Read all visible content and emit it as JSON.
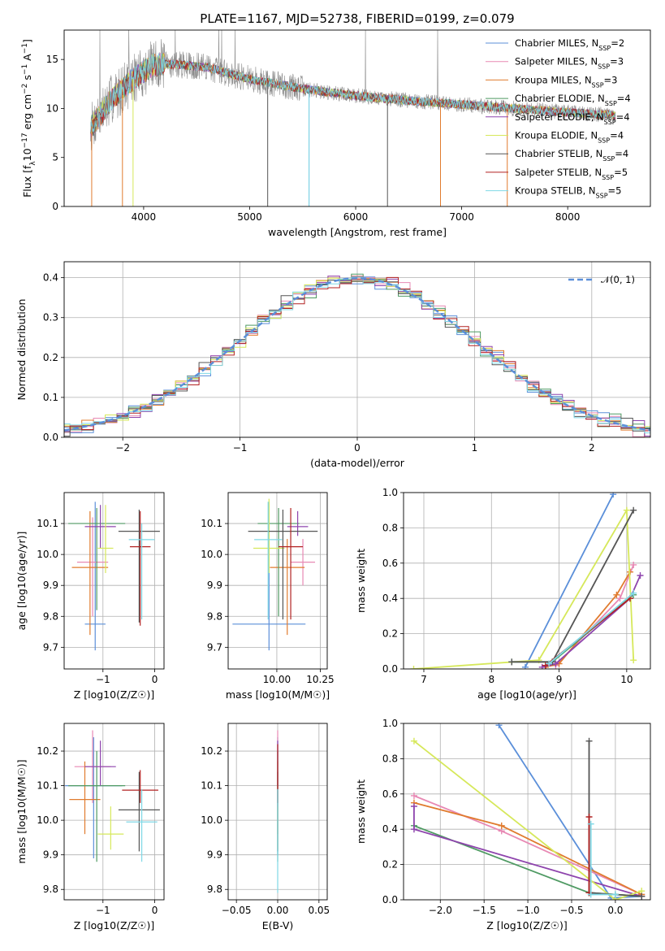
{
  "colors": {
    "Chabrier MILES": "#5b8fd9",
    "Salpeter MILES": "#e889b4",
    "Kroupa MILES": "#e07b2e",
    "Chabrier ELODIE": "#4f9a63",
    "Salpeter ELODIE": "#8e44ad",
    "Kroupa ELODIE": "#d6e85a",
    "Chabrier STELIB": "#555555",
    "Salpeter STELIB": "#b22222",
    "Kroupa STELIB": "#7fd8e6",
    "data": "#8c8c8c",
    "grid": "#b0b0b0"
  },
  "chart_data": [
    {
      "id": "spectrum",
      "type": "line",
      "title": "PLATE=1167, MJD=52738, FIBERID=0199, z=0.079",
      "xlabel": "wavelength [Angstrom, rest frame]",
      "ylabel": "Flux [f_λ 10^-17 erg cm^-2 s^-1 A^-1]",
      "xlim": [
        3250,
        8780
      ],
      "ylim": [
        0,
        18
      ],
      "xticks": [
        4000,
        5000,
        6000,
        7000,
        8000
      ],
      "yticks": [
        0,
        5,
        10,
        15
      ],
      "grid": false,
      "legend_position": "upper-right",
      "legend": [
        {
          "model": "Chabrier MILES",
          "text": "Chabrier MILES, N",
          "n": "=2"
        },
        {
          "model": "Salpeter MILES",
          "text": "Salpeter MILES, N",
          "n": "=3"
        },
        {
          "model": "Kroupa MILES",
          "text": "Kroupa MILES, N",
          "n": "=3"
        },
        {
          "model": "Chabrier ELODIE",
          "text": "Chabrier ELODIE, N",
          "n": "=4"
        },
        {
          "model": "Salpeter ELODIE",
          "text": "Salpeter ELODIE, N",
          "n": "=4"
        },
        {
          "model": "Kroupa ELODIE",
          "text": "Kroupa ELODIE, N",
          "n": "=4"
        },
        {
          "model": "Chabrier STELIB",
          "text": "Chabrier STELIB, N",
          "n": "=4"
        },
        {
          "model": "Salpeter STELIB",
          "text": "Salpeter STELIB, N",
          "n": "=5"
        },
        {
          "model": "Kroupa STELIB",
          "text": "Kroupa STELIB, N",
          "n": "=5"
        }
      ],
      "legend_subscript": "SSP",
      "spectrum_anchor_points": [
        [
          3500,
          8.0
        ],
        [
          3700,
          11.0
        ],
        [
          3900,
          13.0
        ],
        [
          4100,
          14.5
        ],
        [
          4300,
          14.5
        ],
        [
          4600,
          14.2
        ],
        [
          5000,
          13.0
        ],
        [
          5500,
          12.0
        ],
        [
          6000,
          11.3
        ],
        [
          6500,
          10.8
        ],
        [
          7000,
          10.4
        ],
        [
          7500,
          10.0
        ],
        [
          8000,
          9.6
        ],
        [
          8450,
          9.3
        ]
      ],
      "spectrum_range": [
        3500,
        8450
      ],
      "dropouts": [
        {
          "model": "Kroupa MILES",
          "x": 3510
        },
        {
          "model": "Kroupa MILES",
          "x": 3800
        },
        {
          "model": "Kroupa ELODIE",
          "x": 3900
        },
        {
          "model": "Chabrier STELIB",
          "x": 5170
        },
        {
          "model": "Chabrier MILES",
          "x": 5560
        },
        {
          "model": "Kroupa STELIB",
          "x": 5560
        },
        {
          "model": "Chabrier STELIB",
          "x": 6300
        },
        {
          "model": "Kroupa MILES",
          "x": 6800
        },
        {
          "model": "Kroupa MILES",
          "x": 7430
        }
      ]
    },
    {
      "id": "residuals",
      "type": "line",
      "xlabel": "(data-model)/error",
      "ylabel": "Normed distribution",
      "xlim": [
        -2.5,
        2.5
      ],
      "ylim": [
        0,
        0.44
      ],
      "xticks": [
        -2,
        -1,
        0,
        1,
        2
      ],
      "yticks": [
        0.0,
        0.1,
        0.2,
        0.3,
        0.4
      ],
      "grid": true,
      "legend_position": "upper-right",
      "reference_curve": {
        "label": "𝒩(0, 1)",
        "style": "dashed",
        "color": "#5b8fd9",
        "mean": 0,
        "sigma": 1
      },
      "histogram_bin_width": 0.1,
      "series": [
        {
          "model": "Chabrier MILES"
        },
        {
          "model": "Salpeter MILES"
        },
        {
          "model": "Kroupa MILES"
        },
        {
          "model": "Chabrier ELODIE"
        },
        {
          "model": "Salpeter ELODIE"
        },
        {
          "model": "Kroupa ELODIE"
        },
        {
          "model": "Chabrier STELIB"
        },
        {
          "model": "Salpeter STELIB"
        },
        {
          "model": "Kroupa STELIB"
        }
      ]
    },
    {
      "id": "age-vs-z",
      "type": "scatter",
      "xlabel": "Z [log10(Z/Z☉)]",
      "ylabel": "age [log10(age/yr)]",
      "xlim": [
        -1.75,
        0.18
      ],
      "ylim": [
        9.63,
        10.2
      ],
      "xticks": [
        -1,
        0
      ],
      "yticks": [
        9.7,
        9.8,
        9.9,
        10.0,
        10.1
      ],
      "grid": true,
      "points": [
        {
          "model": "Chabrier MILES",
          "x": -1.15,
          "y": 9.775,
          "xerr": 0.2,
          "yerr": [
            9.69,
            10.17
          ]
        },
        {
          "model": "Salpeter MILES",
          "x": -1.2,
          "y": 9.975,
          "xerr": 0.3,
          "yerr": [
            9.8,
            10.12
          ]
        },
        {
          "model": "Kroupa MILES",
          "x": -1.25,
          "y": 9.958,
          "xerr": 0.35,
          "yerr": [
            9.74,
            10.14
          ]
        },
        {
          "model": "Chabrier ELODIE",
          "x": -1.12,
          "y": 10.1,
          "xerr": 0.55,
          "yerr": [
            9.82,
            10.15
          ]
        },
        {
          "model": "Salpeter ELODIE",
          "x": -1.05,
          "y": 10.09,
          "xerr": 0.3,
          "yerr": [
            10.02,
            10.16
          ]
        },
        {
          "model": "Kroupa ELODIE",
          "x": -0.95,
          "y": 10.02,
          "xerr": 0.15,
          "yerr": [
            9.94,
            10.16
          ]
        },
        {
          "model": "Chabrier STELIB",
          "x": -0.3,
          "y": 10.075,
          "xerr": 0.4,
          "yerr": [
            9.78,
            10.145
          ]
        },
        {
          "model": "Salpeter STELIB",
          "x": -0.28,
          "y": 10.025,
          "xerr": 0.2,
          "yerr": [
            9.77,
            10.14
          ]
        },
        {
          "model": "Kroupa STELIB",
          "x": -0.25,
          "y": 10.048,
          "xerr": 0.25,
          "yerr": [
            9.79,
            10.1
          ]
        }
      ]
    },
    {
      "id": "age-vs-mass",
      "type": "scatter",
      "xlabel": "mass [log10(M/M☉)]",
      "ylabel": "",
      "xlim": [
        9.72,
        10.29
      ],
      "ylim": [
        9.63,
        10.2
      ],
      "xticks": [
        10.0,
        10.25
      ],
      "xtick_labels": [
        "10.00",
        "10.25"
      ],
      "yticks": [
        9.7,
        9.8,
        9.9,
        10.0,
        10.1
      ],
      "grid": true,
      "points": [
        {
          "model": "Chabrier MILES",
          "x": 9.955,
          "y": 9.775,
          "xerr": 0.21,
          "yerr": [
            9.69,
            10.17
          ]
        },
        {
          "model": "Salpeter MILES",
          "x": 10.15,
          "y": 9.975,
          "xerr": 0.07,
          "yerr": [
            9.9,
            10.05
          ]
        },
        {
          "model": "Kroupa MILES",
          "x": 10.06,
          "y": 9.958,
          "xerr": 0.1,
          "yerr": [
            9.74,
            10.05
          ]
        },
        {
          "model": "Chabrier ELODIE",
          "x": 10.01,
          "y": 10.1,
          "xerr": 0.12,
          "yerr": [
            9.8,
            10.15
          ]
        },
        {
          "model": "Salpeter ELODIE",
          "x": 10.12,
          "y": 10.09,
          "xerr": 0.06,
          "yerr": [
            10.06,
            10.14
          ]
        },
        {
          "model": "Kroupa ELODIE",
          "x": 9.955,
          "y": 10.02,
          "xerr": 0.09,
          "yerr": [
            9.94,
            10.18
          ]
        },
        {
          "model": "Chabrier STELIB",
          "x": 10.035,
          "y": 10.075,
          "xerr": 0.2,
          "yerr": [
            9.79,
            10.145
          ]
        },
        {
          "model": "Salpeter STELIB",
          "x": 10.08,
          "y": 10.025,
          "xerr": 0.07,
          "yerr": [
            9.79,
            10.15
          ]
        },
        {
          "model": "Kroupa STELIB",
          "x": 9.95,
          "y": 10.048,
          "xerr": 0.08,
          "yerr": [
            9.79,
            10.17
          ]
        }
      ]
    },
    {
      "id": "weight-vs-age",
      "type": "line",
      "xlabel": "age [log10(age/yr)]",
      "ylabel": "mass weight",
      "xlim": [
        6.7,
        10.35
      ],
      "ylim": [
        0,
        1
      ],
      "xticks": [
        7,
        8,
        9,
        10
      ],
      "yticks": [
        0.0,
        0.2,
        0.4,
        0.6,
        0.8,
        1.0
      ],
      "grid": true,
      "series": [
        {
          "model": "Chabrier MILES",
          "x": [
            8.5,
            9.8
          ],
          "y": [
            0.01,
            0.99
          ]
        },
        {
          "model": "Salpeter MILES",
          "x": [
            8.8,
            8.95,
            9.9,
            10.1
          ],
          "y": [
            0.02,
            0.02,
            0.4,
            0.59
          ]
        },
        {
          "model": "Kroupa MILES",
          "x": [
            8.8,
            9.0,
            9.85,
            10.05
          ],
          "y": [
            0.01,
            0.03,
            0.42,
            0.55
          ]
        },
        {
          "model": "Chabrier ELODIE",
          "x": [
            8.3,
            8.9,
            10.1
          ],
          "y": [
            0.04,
            0.04,
            0.42
          ]
        },
        {
          "model": "Salpeter ELODIE",
          "x": [
            8.75,
            8.95,
            10.05,
            10.2
          ],
          "y": [
            0.01,
            0.03,
            0.4,
            0.53
          ]
        },
        {
          "model": "Kroupa ELODIE",
          "x": [
            6.85,
            8.7,
            10.0,
            10.1
          ],
          "y": [
            0.0,
            0.05,
            0.9,
            0.05
          ]
        },
        {
          "model": "Chabrier STELIB",
          "x": [
            8.3,
            8.9,
            10.1
          ],
          "y": [
            0.04,
            0.04,
            0.9
          ]
        },
        {
          "model": "Salpeter STELIB",
          "x": [
            8.8,
            10.05
          ],
          "y": [
            0.02,
            0.4
          ]
        },
        {
          "model": "Kroupa STELIB",
          "x": [
            8.85,
            10.1
          ],
          "y": [
            0.03,
            0.43
          ]
        }
      ]
    },
    {
      "id": "mass-vs-z",
      "type": "scatter",
      "xlabel": "Z [log10(Z/Z☉)]",
      "ylabel": "mass [log10(M/M☉)]",
      "xlim": [
        -1.75,
        0.18
      ],
      "ylim": [
        9.77,
        10.28
      ],
      "xticks": [
        -1,
        0
      ],
      "yticks": [
        9.8,
        9.9,
        10.0,
        10.1,
        10.2
      ],
      "grid": true,
      "points": [
        {
          "model": "Chabrier MILES",
          "x": -1.18,
          "y": 10.1,
          "xerr": 0.55,
          "yerr": [
            9.89,
            10.24
          ]
        },
        {
          "model": "Salpeter MILES",
          "x": -1.2,
          "y": 10.155,
          "xerr": 0.35,
          "yerr": [
            10.05,
            10.26
          ]
        },
        {
          "model": "Kroupa MILES",
          "x": -1.35,
          "y": 10.06,
          "xerr": 0.3,
          "yerr": [
            9.96,
            10.17
          ]
        },
        {
          "model": "Chabrier ELODIE",
          "x": -1.12,
          "y": 10.1,
          "xerr": 0.55,
          "yerr": [
            9.88,
            10.2
          ]
        },
        {
          "model": "Salpeter ELODIE",
          "x": -1.05,
          "y": 10.155,
          "xerr": 0.3,
          "yerr": [
            10.1,
            10.23
          ]
        },
        {
          "model": "Kroupa ELODIE",
          "x": -0.85,
          "y": 9.96,
          "xerr": 0.25,
          "yerr": [
            9.915,
            10.04
          ]
        },
        {
          "model": "Chabrier STELIB",
          "x": -0.3,
          "y": 10.03,
          "xerr": 0.4,
          "yerr": [
            9.91,
            10.14
          ]
        },
        {
          "model": "Salpeter STELIB",
          "x": -0.28,
          "y": 10.087,
          "xerr": 0.35,
          "yerr": [
            10.05,
            10.145
          ]
        },
        {
          "model": "Kroupa STELIB",
          "x": -0.25,
          "y": 9.995,
          "xerr": 0.3,
          "yerr": [
            9.88,
            10.09
          ]
        }
      ]
    },
    {
      "id": "mass-vs-ebv",
      "type": "scatter",
      "xlabel": "E(B-V)",
      "ylabel": "",
      "xlim": [
        -0.06,
        0.06
      ],
      "ylim": [
        9.77,
        10.28
      ],
      "xticks": [
        -0.05,
        0.0,
        0.05
      ],
      "xtick_labels": [
        "−0.05",
        "0.00",
        "0.05"
      ],
      "yticks": [
        9.8,
        9.9,
        10.0,
        10.1,
        10.2
      ],
      "grid": true,
      "points": [
        {
          "model": "Chabrier MILES",
          "x": 0,
          "y": 10.1,
          "yerr": [
            9.9,
            10.24
          ]
        },
        {
          "model": "Salpeter MILES",
          "x": 0,
          "y": 10.155,
          "yerr": [
            10.05,
            10.26
          ]
        },
        {
          "model": "Kroupa MILES",
          "x": 0,
          "y": 10.06,
          "yerr": [
            9.96,
            10.17
          ]
        },
        {
          "model": "Chabrier ELODIE",
          "x": 0,
          "y": 10.1,
          "yerr": [
            9.88,
            10.2
          ]
        },
        {
          "model": "Salpeter ELODIE",
          "x": 0,
          "y": 10.155,
          "yerr": [
            10.1,
            10.23
          ]
        },
        {
          "model": "Kroupa ELODIE",
          "x": 0,
          "y": 9.96,
          "yerr": [
            9.915,
            10.04
          ]
        },
        {
          "model": "Chabrier STELIB",
          "x": 0,
          "y": 10.03,
          "yerr": [
            9.91,
            10.14
          ]
        },
        {
          "model": "Salpeter STELIB",
          "x": 0,
          "y": 10.087,
          "yerr": [
            10.05,
            10.22
          ]
        },
        {
          "model": "Kroupa STELIB",
          "x": 0,
          "y": 9.995,
          "yerr": [
            9.79,
            10.09
          ]
        }
      ]
    },
    {
      "id": "weight-vs-z",
      "type": "line",
      "xlabel": "Z [log10(Z/Z☉)]",
      "ylabel": "mass weight",
      "xlim": [
        -2.42,
        0.4
      ],
      "ylim": [
        0,
        1
      ],
      "xticks": [
        -2.0,
        -1.5,
        -1.0,
        -0.5,
        0.0
      ],
      "xtick_labels": [
        "−2.0",
        "−1.5",
        "−1.0",
        "−0.5",
        "0.0"
      ],
      "yticks": [
        0.0,
        0.2,
        0.4,
        0.6,
        0.8,
        1.0
      ],
      "grid": true,
      "series": [
        {
          "model": "Chabrier MILES",
          "x": [
            -1.33,
            -0.05,
            0.3
          ],
          "y": [
            0.99,
            0.01,
            0.02
          ]
        },
        {
          "model": "Salpeter MILES",
          "x": [
            -2.3,
            -1.3,
            0.3
          ],
          "y": [
            0.59,
            0.39,
            0.03
          ]
        },
        {
          "model": "Kroupa MILES",
          "x": [
            -2.3,
            -1.3,
            0.3
          ],
          "y": [
            0.55,
            0.42,
            0.03
          ]
        },
        {
          "model": "Chabrier ELODIE",
          "x": [
            -2.3,
            -0.3,
            0.0,
            0.3
          ],
          "y": [
            0.42,
            0.04,
            0.03,
            0.02
          ]
        },
        {
          "model": "Salpeter ELODIE",
          "x": [
            -2.3,
            -2.3,
            0.3
          ],
          "y": [
            0.53,
            0.4,
            0.02
          ]
        },
        {
          "model": "Kroupa ELODIE",
          "x": [
            -2.3,
            0.0,
            0.3
          ],
          "y": [
            0.9,
            0.0,
            0.05
          ]
        },
        {
          "model": "Chabrier STELIB",
          "x": [
            -0.3,
            -0.3,
            0.3
          ],
          "y": [
            0.9,
            0.04,
            0.02
          ]
        },
        {
          "model": "Salpeter STELIB",
          "x": [
            -0.3,
            -0.3
          ],
          "y": [
            0.47,
            0.04
          ]
        },
        {
          "model": "Kroupa STELIB",
          "x": [
            -0.28,
            -0.28,
            0.0
          ],
          "y": [
            0.43,
            0.03,
            0.03
          ]
        }
      ]
    }
  ]
}
